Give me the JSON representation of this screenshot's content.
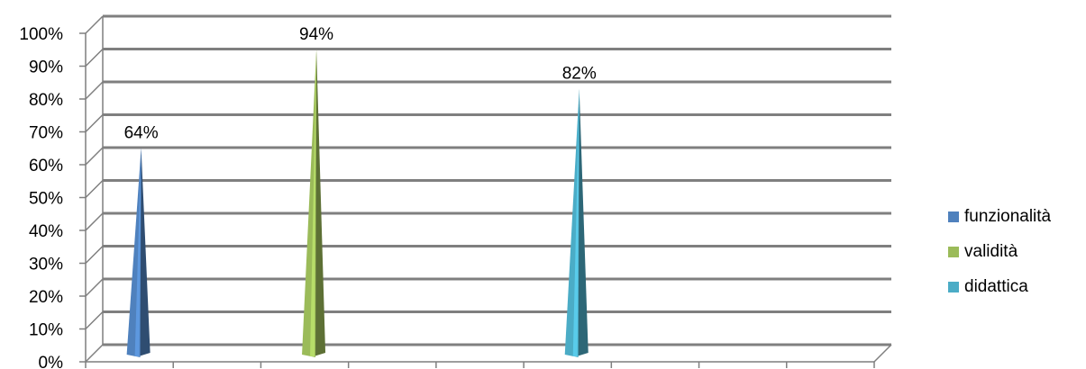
{
  "chart_data": {
    "type": "bar",
    "shape": "cone-3d",
    "title": "",
    "xlabel": "",
    "ylabel": "",
    "ylim": [
      0,
      100
    ],
    "yticks": [
      "0%",
      "10%",
      "20%",
      "30%",
      "40%",
      "50%",
      "60%",
      "70%",
      "80%",
      "90%",
      "100%"
    ],
    "grid": true,
    "legend_position": "right",
    "series": [
      {
        "name": "funzionalità",
        "value": 64,
        "label": "64%",
        "color": "#4F81BD",
        "slot": 0
      },
      {
        "name": "validità",
        "value": 94,
        "label": "94%",
        "color": "#9BBB59",
        "slot": 2
      },
      {
        "name": "didattica",
        "value": 82,
        "label": "82%",
        "color": "#4BACC6",
        "slot": 5
      }
    ],
    "slot_count": 9
  }
}
